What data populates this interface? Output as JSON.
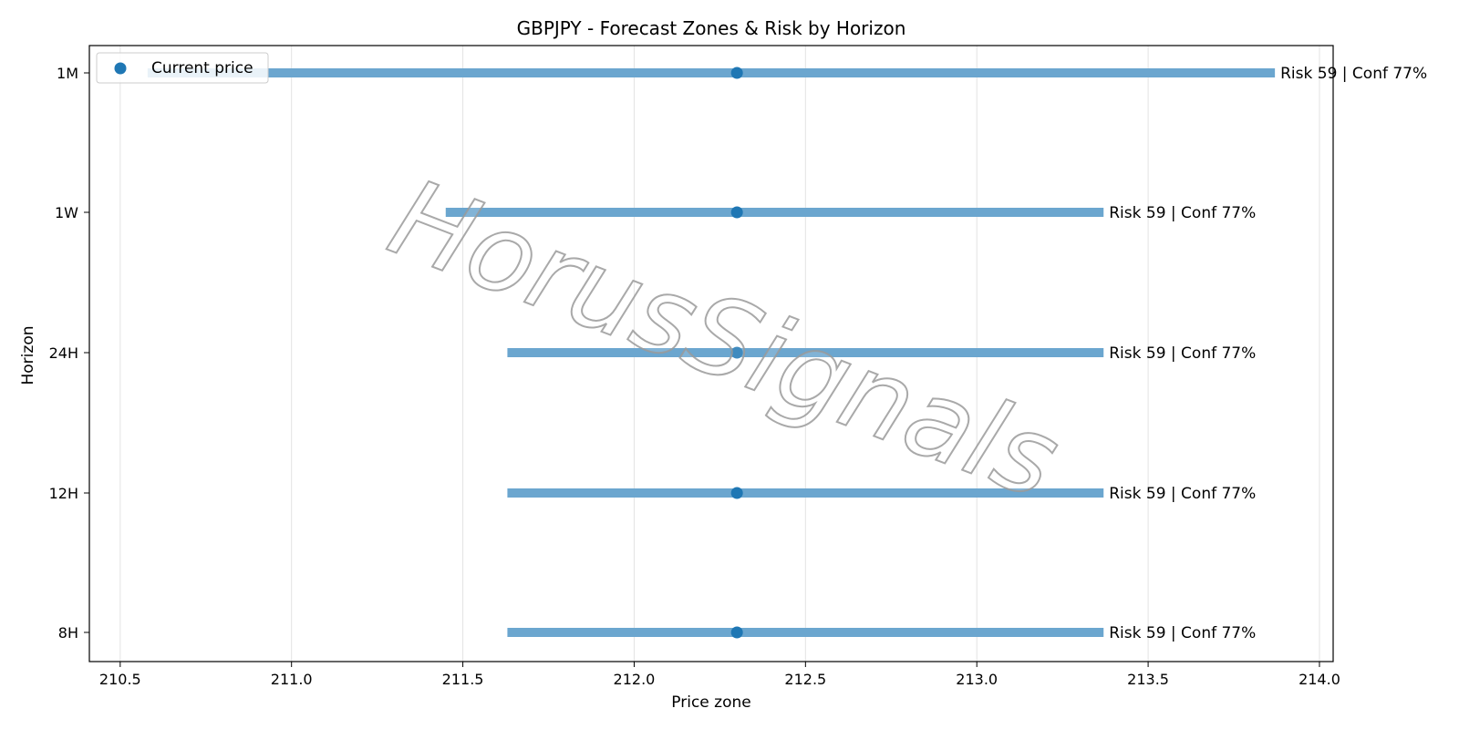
{
  "chart_data": {
    "type": "range",
    "title": "GBPJPY - Forecast Zones & Risk by Horizon",
    "xlabel": "Price zone",
    "ylabel": "Horizon",
    "xlim": [
      210.41,
      214.04
    ],
    "xticks": [
      "210.5",
      "211.0",
      "211.5",
      "212.0",
      "212.5",
      "213.0",
      "213.5",
      "214.0"
    ],
    "grid": "vertical",
    "legend": {
      "position": "top-left",
      "entries": [
        "Current price"
      ]
    },
    "watermark": "HorusSignals",
    "current_price": 212.3,
    "horizons": [
      {
        "label": "8H",
        "low": 211.63,
        "high": 213.37,
        "annotation": "Risk 59 | Conf 77%"
      },
      {
        "label": "12H",
        "low": 211.63,
        "high": 213.37,
        "annotation": "Risk 59 | Conf 77%"
      },
      {
        "label": "24H",
        "low": 211.63,
        "high": 213.37,
        "annotation": "Risk 59 | Conf 77%"
      },
      {
        "label": "1W",
        "low": 211.45,
        "high": 213.37,
        "annotation": "Risk 59 | Conf 77%"
      },
      {
        "label": "1M",
        "low": 210.58,
        "high": 213.87,
        "annotation": "Risk 59 | Conf 77%"
      }
    ],
    "colors": {
      "zone": "#6ba6cf",
      "point": "#1f77b4",
      "grid": "#e3e3e3",
      "axis": "#000000"
    }
  }
}
